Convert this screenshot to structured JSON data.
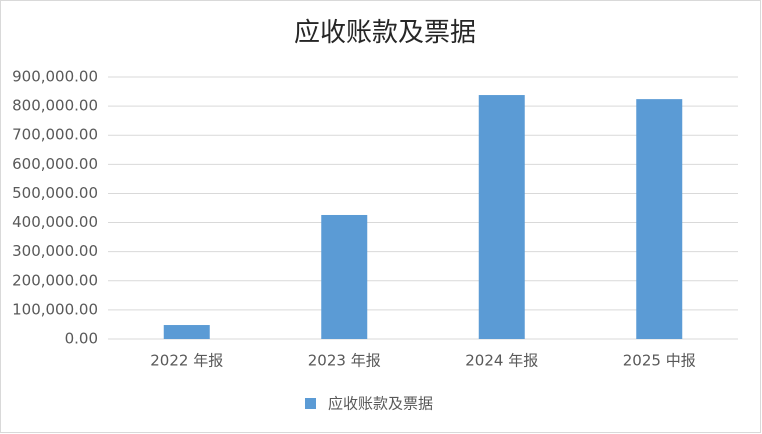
{
  "chart_data": {
    "type": "bar",
    "title": "应收账款及票据",
    "categories": [
      "2022 年报",
      "2023 年报",
      "2024 年报",
      "2025 中报"
    ],
    "series": [
      {
        "name": "应收账款及票据",
        "color": "#5b9bd5",
        "values": [
          48000,
          426000,
          838000,
          824000
        ]
      }
    ],
    "ylim": [
      0,
      900000
    ],
    "yticks": [
      {
        "value": 0,
        "label": "0.00"
      },
      {
        "value": 100000,
        "label": "100,000.00"
      },
      {
        "value": 200000,
        "label": "200,000.00"
      },
      {
        "value": 300000,
        "label": "300,000.00"
      },
      {
        "value": 400000,
        "label": "400,000.00"
      },
      {
        "value": 500000,
        "label": "500,000.00"
      },
      {
        "value": 600000,
        "label": "600,000.00"
      },
      {
        "value": 700000,
        "label": "700,000.00"
      },
      {
        "value": 800000,
        "label": "800,000.00"
      },
      {
        "value": 900000,
        "label": "900,000.00"
      }
    ],
    "grid": true,
    "legend": "bottom"
  }
}
